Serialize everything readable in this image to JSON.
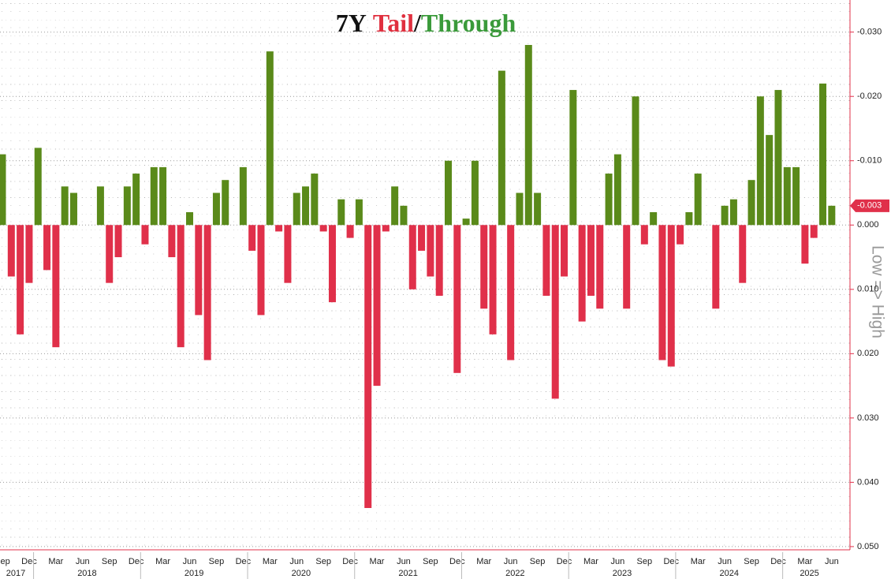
{
  "chart_data": {
    "type": "bar",
    "title_parts": [
      {
        "text": "7Y",
        "color": "#111111"
      },
      {
        "text": "Tail",
        "color": "#e0303f"
      },
      {
        "text": "/",
        "color": "#111111"
      },
      {
        "text": "Through",
        "color": "#3a9a3a"
      }
    ],
    "y_axis_label": "Low => High",
    "y_inverted": true,
    "positive_color": "#e0304a",
    "negative_color": "#5a8a1a",
    "categories": [
      "Sep",
      null,
      null,
      "Dec",
      null,
      null,
      "Mar",
      null,
      null,
      "Jun",
      null,
      null,
      "Sep",
      null,
      null,
      "Dec",
      null,
      null,
      "Mar",
      null,
      null,
      "Jun",
      null,
      null,
      "Sep",
      null,
      null,
      "Dec",
      null,
      null,
      "Mar",
      null,
      null,
      "Jun",
      null,
      null,
      "Sep",
      null,
      null,
      "Dec",
      null,
      null,
      "Mar",
      null,
      null,
      "Jun",
      null,
      null,
      "Sep",
      null,
      null,
      "Dec",
      null,
      null,
      "Mar",
      null,
      null,
      "Jun",
      null,
      null,
      "Sep",
      null,
      null,
      "Dec",
      null,
      null,
      "Mar",
      null,
      null,
      "Jun",
      null,
      null,
      "Sep",
      null,
      null,
      "Dec",
      null,
      null,
      "Mar",
      null,
      null,
      "Jun",
      null,
      null,
      "Sep",
      null,
      null,
      "Dec",
      null,
      null,
      "Mar",
      null,
      null,
      "Jun"
    ],
    "year_labels": [
      "2017",
      "2018",
      "2019",
      "2020",
      "2021",
      "2022",
      "2023",
      "2024",
      "2025"
    ],
    "values": [
      -0.011,
      0.008,
      0.017,
      0.009,
      -0.012,
      0.007,
      0.019,
      -0.006,
      -0.005,
      0,
      0,
      -0.006,
      0.009,
      0.005,
      -0.006,
      -0.008,
      0.003,
      -0.009,
      -0.009,
      0.005,
      0.019,
      -0.002,
      0.014,
      0.021,
      -0.005,
      -0.007,
      0,
      -0.009,
      0.004,
      0.014,
      -0.027,
      0.001,
      0.009,
      -0.005,
      -0.006,
      -0.008,
      0.001,
      0.012,
      -0.004,
      0.002,
      -0.004,
      0.044,
      0.025,
      0.001,
      -0.006,
      -0.003,
      0.01,
      0.004,
      0.008,
      0.011,
      -0.01,
      0.023,
      -0.001,
      -0.01,
      0.013,
      0.017,
      -0.024,
      0.021,
      -0.005,
      -0.028,
      -0.005,
      0.011,
      0.027,
      0.008,
      -0.021,
      0.015,
      0.011,
      0.013,
      -0.008,
      -0.011,
      0.013,
      -0.02,
      0.003,
      -0.002,
      0.021,
      0.022,
      0.003,
      -0.002,
      -0.008,
      0,
      0.013,
      -0.003,
      -0.004,
      0.009,
      -0.007,
      -0.02,
      -0.014,
      -0.021,
      -0.009,
      -0.009,
      0.006,
      0.002,
      -0.022,
      -0.003
    ],
    "last_value_label": "-0.003",
    "ylim": [
      -0.0345,
      0.0505
    ],
    "yticks": [
      {
        "value": -0.03,
        "label": "-0.030"
      },
      {
        "value": -0.02,
        "label": "-0.020"
      },
      {
        "value": -0.01,
        "label": "-0.010"
      },
      {
        "value": 0,
        "label": "0.000"
      },
      {
        "value": 0.01,
        "label": "0.010"
      },
      {
        "value": 0.02,
        "label": "0.020"
      },
      {
        "value": 0.03,
        "label": "0.030"
      },
      {
        "value": 0.04,
        "label": "0.040"
      },
      {
        "value": 0.05,
        "label": "0.050"
      }
    ],
    "grid": true
  }
}
